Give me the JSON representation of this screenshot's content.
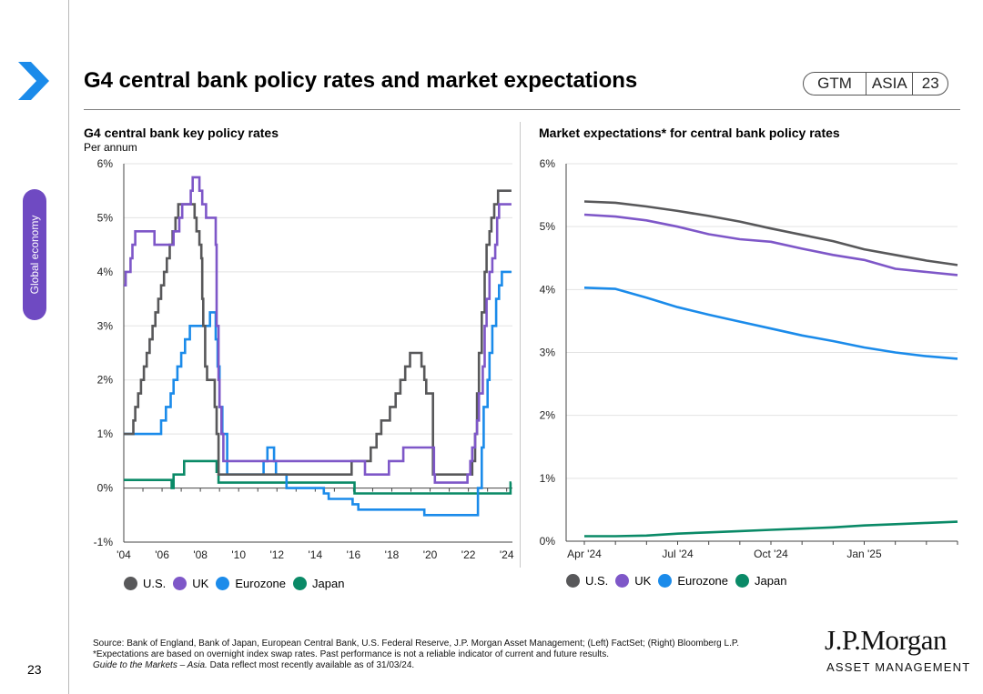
{
  "page": {
    "title": "G4 central bank policy rates and market expectations",
    "badge": {
      "gtm": "GTM",
      "region": "ASIA",
      "page": "23"
    },
    "side_tab": "Global economy",
    "page_number": "23"
  },
  "left_chart": {
    "title": "G4 central bank key policy rates",
    "subtitle": "Per annum"
  },
  "right_chart": {
    "title": "Market expectations* for central bank policy rates"
  },
  "legend_items": [
    {
      "label": "U.S.",
      "color": "#58585a"
    },
    {
      "label": "UK",
      "color": "#7e57c8"
    },
    {
      "label": "Eurozone",
      "color": "#1b8bea"
    },
    {
      "label": "Japan",
      "color": "#0a8a67"
    }
  ],
  "footnote": {
    "source": "Source: Bank of England, Bank of Japan, European Central Bank, U.S. Federal Reserve, J.P. Morgan Asset Management; (Left) FactSet; (Right) Bloomberg L.P.",
    "note": "*Expectations are based on overnight index swap rates. Past performance is not a reliable indicator of current and future results.",
    "guide_italic": "Guide to the Markets – Asia.",
    "guide_rest": " Data reflect most recently available as of 31/03/24."
  },
  "logo": {
    "name": "J.P.Morgan",
    "sub": "ASSET MANAGEMENT"
  },
  "chart_data": [
    {
      "type": "line",
      "title": "G4 central bank key policy rates",
      "ylabel": "Per annum",
      "xlim": [
        2004,
        2024.3
      ],
      "ylim": [
        -1,
        6
      ],
      "y_ticks": [
        "-1%",
        "0%",
        "1%",
        "2%",
        "3%",
        "4%",
        "5%",
        "6%"
      ],
      "x_ticks": [
        "'04",
        "'06",
        "'08",
        "'10",
        "'12",
        "'14",
        "'16",
        "'18",
        "'20",
        "'22",
        "'24"
      ],
      "grid": true,
      "legend": "bottom",
      "series": [
        {
          "name": "U.S.",
          "color": "#58585a",
          "step": true,
          "points": [
            [
              2004,
              1.0
            ],
            [
              2004.5,
              1.25
            ],
            [
              2004.6,
              1.5
            ],
            [
              2004.75,
              1.75
            ],
            [
              2004.9,
              2.0
            ],
            [
              2005.05,
              2.25
            ],
            [
              2005.2,
              2.5
            ],
            [
              2005.35,
              2.75
            ],
            [
              2005.5,
              3.0
            ],
            [
              2005.65,
              3.25
            ],
            [
              2005.8,
              3.5
            ],
            [
              2005.95,
              3.75
            ],
            [
              2006.1,
              4.0
            ],
            [
              2006.25,
              4.25
            ],
            [
              2006.4,
              4.5
            ],
            [
              2006.55,
              4.75
            ],
            [
              2006.7,
              5.0
            ],
            [
              2006.85,
              5.25
            ],
            [
              2007.7,
              5.0
            ],
            [
              2007.8,
              4.75
            ],
            [
              2007.95,
              4.5
            ],
            [
              2008.05,
              4.25
            ],
            [
              2008.1,
              3.5
            ],
            [
              2008.15,
              3.0
            ],
            [
              2008.25,
              2.25
            ],
            [
              2008.35,
              2.0
            ],
            [
              2008.75,
              1.5
            ],
            [
              2008.85,
              1.0
            ],
            [
              2008.95,
              0.25
            ],
            [
              2015.9,
              0.5
            ],
            [
              2016.9,
              0.75
            ],
            [
              2017.2,
              1.0
            ],
            [
              2017.45,
              1.25
            ],
            [
              2017.9,
              1.5
            ],
            [
              2018.2,
              1.75
            ],
            [
              2018.45,
              2.0
            ],
            [
              2018.7,
              2.25
            ],
            [
              2018.95,
              2.5
            ],
            [
              2019.55,
              2.25
            ],
            [
              2019.7,
              2.0
            ],
            [
              2019.8,
              1.75
            ],
            [
              2020.15,
              0.25
            ],
            [
              2022.2,
              0.5
            ],
            [
              2022.35,
              1.0
            ],
            [
              2022.45,
              1.75
            ],
            [
              2022.55,
              2.5
            ],
            [
              2022.7,
              3.25
            ],
            [
              2022.85,
              4.0
            ],
            [
              2022.95,
              4.5
            ],
            [
              2023.1,
              4.75
            ],
            [
              2023.2,
              5.0
            ],
            [
              2023.35,
              5.25
            ],
            [
              2023.55,
              5.5
            ],
            [
              2024.25,
              5.5
            ]
          ]
        },
        {
          "name": "UK",
          "color": "#7e57c8",
          "step": true,
          "points": [
            [
              2004,
              3.75
            ],
            [
              2004.1,
              4.0
            ],
            [
              2004.35,
              4.25
            ],
            [
              2004.45,
              4.5
            ],
            [
              2004.6,
              4.75
            ],
            [
              2005.6,
              4.5
            ],
            [
              2006.6,
              4.75
            ],
            [
              2006.9,
              5.0
            ],
            [
              2007.05,
              5.25
            ],
            [
              2007.5,
              5.5
            ],
            [
              2007.6,
              5.75
            ],
            [
              2007.95,
              5.5
            ],
            [
              2008.1,
              5.25
            ],
            [
              2008.3,
              5.0
            ],
            [
              2008.8,
              4.5
            ],
            [
              2008.85,
              3.0
            ],
            [
              2008.95,
              2.0
            ],
            [
              2009.0,
              1.5
            ],
            [
              2009.1,
              1.0
            ],
            [
              2009.2,
              0.5
            ],
            [
              2016.6,
              0.25
            ],
            [
              2017.85,
              0.5
            ],
            [
              2018.6,
              0.75
            ],
            [
              2020.2,
              0.25
            ],
            [
              2020.25,
              0.1
            ],
            [
              2021.95,
              0.25
            ],
            [
              2022.1,
              0.5
            ],
            [
              2022.2,
              0.75
            ],
            [
              2022.35,
              1.0
            ],
            [
              2022.45,
              1.25
            ],
            [
              2022.55,
              1.75
            ],
            [
              2022.75,
              2.25
            ],
            [
              2022.85,
              3.0
            ],
            [
              2022.95,
              3.5
            ],
            [
              2023.1,
              4.0
            ],
            [
              2023.25,
              4.25
            ],
            [
              2023.4,
              4.5
            ],
            [
              2023.5,
              5.0
            ],
            [
              2023.6,
              5.25
            ],
            [
              2024.25,
              5.25
            ]
          ]
        },
        {
          "name": "Eurozone",
          "color": "#1b8bea",
          "step": true,
          "points": [
            [
              2004,
              1.0
            ],
            [
              2005.95,
              1.25
            ],
            [
              2006.2,
              1.5
            ],
            [
              2006.45,
              1.75
            ],
            [
              2006.6,
              2.0
            ],
            [
              2006.8,
              2.25
            ],
            [
              2007.0,
              2.5
            ],
            [
              2007.2,
              2.75
            ],
            [
              2007.45,
              3.0
            ],
            [
              2008.5,
              3.25
            ],
            [
              2008.8,
              2.75
            ],
            [
              2008.9,
              2.25
            ],
            [
              2009.0,
              1.5
            ],
            [
              2009.15,
              1.0
            ],
            [
              2009.4,
              0.25
            ],
            [
              2011.3,
              0.5
            ],
            [
              2011.5,
              0.75
            ],
            [
              2011.85,
              0.5
            ],
            [
              2011.95,
              0.25
            ],
            [
              2012.5,
              0.0
            ],
            [
              2014.45,
              -0.1
            ],
            [
              2014.7,
              -0.2
            ],
            [
              2015.95,
              -0.3
            ],
            [
              2016.25,
              -0.4
            ],
            [
              2019.7,
              -0.5
            ],
            [
              2022.5,
              0.0
            ],
            [
              2022.7,
              0.75
            ],
            [
              2022.8,
              1.5
            ],
            [
              2023.0,
              2.0
            ],
            [
              2023.1,
              2.5
            ],
            [
              2023.25,
              3.0
            ],
            [
              2023.45,
              3.5
            ],
            [
              2023.6,
              3.75
            ],
            [
              2023.75,
              4.0
            ],
            [
              2024.25,
              4.0
            ]
          ]
        },
        {
          "name": "Japan",
          "color": "#0a8a67",
          "step": true,
          "points": [
            [
              2004,
              0.15
            ],
            [
              2006.5,
              0.0
            ],
            [
              2006.6,
              0.25
            ],
            [
              2007.15,
              0.5
            ],
            [
              2008.85,
              0.3
            ],
            [
              2008.95,
              0.1
            ],
            [
              2016.05,
              -0.1
            ],
            [
              2024.2,
              0.1
            ],
            [
              2024.25,
              0.1
            ]
          ]
        }
      ]
    },
    {
      "type": "line",
      "title": "Market expectations* for central bank policy rates",
      "x_ticks": [
        "Apr '24",
        "Jul '24",
        "Oct '24",
        "Jan '25"
      ],
      "x_months_span": 12,
      "ylim": [
        0,
        6
      ],
      "y_ticks": [
        "0%",
        "1%",
        "2%",
        "3%",
        "4%",
        "5%",
        "6%"
      ],
      "grid": true,
      "legend": "bottom",
      "series": [
        {
          "name": "U.S.",
          "color": "#58585a",
          "points": [
            [
              0,
              5.4
            ],
            [
              1,
              5.38
            ],
            [
              2,
              5.32
            ],
            [
              3,
              5.25
            ],
            [
              4,
              5.17
            ],
            [
              5,
              5.08
            ],
            [
              6,
              4.97
            ],
            [
              7,
              4.87
            ],
            [
              8,
              4.77
            ],
            [
              9,
              4.64
            ],
            [
              10,
              4.55
            ],
            [
              11,
              4.46
            ],
            [
              12,
              4.39
            ]
          ]
        },
        {
          "name": "UK",
          "color": "#7e57c8",
          "points": [
            [
              0,
              5.19
            ],
            [
              1,
              5.16
            ],
            [
              2,
              5.1
            ],
            [
              3,
              5.0
            ],
            [
              4,
              4.88
            ],
            [
              5,
              4.8
            ],
            [
              6,
              4.76
            ],
            [
              7,
              4.65
            ],
            [
              8,
              4.55
            ],
            [
              9,
              4.47
            ],
            [
              10,
              4.33
            ],
            [
              11,
              4.28
            ],
            [
              12,
              4.23
            ]
          ]
        },
        {
          "name": "Eurozone",
          "color": "#1b8bea",
          "points": [
            [
              0,
              4.03
            ],
            [
              1,
              4.01
            ],
            [
              2,
              3.87
            ],
            [
              3,
              3.72
            ],
            [
              4,
              3.6
            ],
            [
              5,
              3.49
            ],
            [
              6,
              3.38
            ],
            [
              7,
              3.27
            ],
            [
              8,
              3.18
            ],
            [
              9,
              3.08
            ],
            [
              10,
              3.0
            ],
            [
              11,
              2.94
            ],
            [
              12,
              2.9
            ]
          ]
        },
        {
          "name": "Japan",
          "color": "#0a8a67",
          "points": [
            [
              0,
              0.08
            ],
            [
              1,
              0.08
            ],
            [
              2,
              0.09
            ],
            [
              3,
              0.12
            ],
            [
              4,
              0.14
            ],
            [
              5,
              0.16
            ],
            [
              6,
              0.18
            ],
            [
              7,
              0.2
            ],
            [
              8,
              0.22
            ],
            [
              9,
              0.25
            ],
            [
              10,
              0.27
            ],
            [
              11,
              0.29
            ],
            [
              12,
              0.31
            ]
          ]
        }
      ]
    }
  ]
}
